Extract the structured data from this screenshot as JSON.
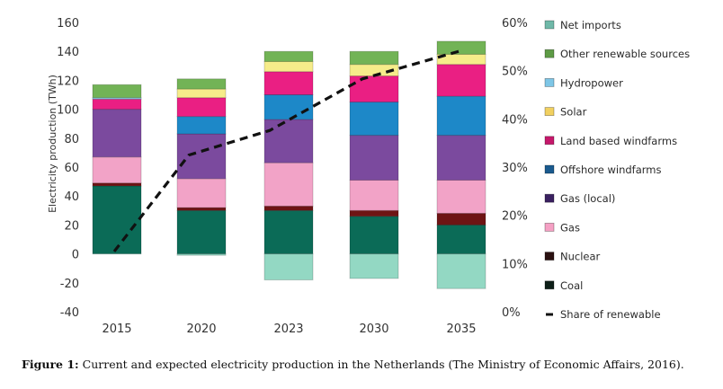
{
  "caption": {
    "label": "Figure 1:",
    "text": " Current and expected electricity production in the Netherlands (The Ministry of Economic Affairs, 2016)."
  },
  "chart_data": {
    "type": "bar",
    "stacked": true,
    "title": "",
    "xlabel": "",
    "ylabel": "Electricity production (TWh)",
    "y2label": "",
    "categories": [
      "2015",
      "2020",
      "2023",
      "2030",
      "2035"
    ],
    "ylim": [
      -40,
      160
    ],
    "yticks": [
      "160",
      "140",
      "120",
      "100",
      "80",
      "60",
      "40",
      "20",
      "0",
      "-20",
      "-40"
    ],
    "ytick_values": [
      160,
      140,
      120,
      100,
      80,
      60,
      40,
      20,
      0,
      -20,
      -40
    ],
    "y2lim": [
      0,
      60
    ],
    "y2ticks": [
      "60%",
      "50%",
      "40%",
      "30%",
      "20%",
      "10%",
      "0%"
    ],
    "y2tick_values": [
      60,
      50,
      40,
      30,
      20,
      10,
      0
    ],
    "grid": false,
    "legend_position": "right",
    "series": [
      {
        "name": "Coal",
        "color": "#0b6b57",
        "values": [
          47,
          30,
          30,
          26,
          20
        ]
      },
      {
        "name": "Nuclear",
        "color": "#6e1414",
        "values": [
          2,
          2,
          3,
          4,
          8
        ]
      },
      {
        "name": "Gas",
        "color": "#f2a3c7",
        "values": [
          18,
          20,
          30,
          21,
          23
        ]
      },
      {
        "name": "Gas (local)",
        "color": "#7b4a9e",
        "values": [
          33,
          31,
          30,
          31,
          31
        ]
      },
      {
        "name": "Offshore windfarms",
        "color": "#1d88c8",
        "values": [
          0,
          12,
          17,
          23,
          27
        ]
      },
      {
        "name": "Land based windfarms",
        "color": "#ea1f83",
        "values": [
          7,
          13,
          16,
          18,
          22
        ]
      },
      {
        "name": "Solar",
        "color": "#f6ec8a",
        "values": [
          0,
          6,
          7,
          8,
          7
        ]
      },
      {
        "name": "Hydropower",
        "color": "#8fd3ef",
        "values": [
          1,
          0,
          0,
          0,
          0
        ]
      },
      {
        "name": "Other renewable sources",
        "color": "#72b356",
        "values": [
          9,
          7,
          7,
          9,
          9
        ]
      },
      {
        "name": "Net imports",
        "color": "#93d8c3",
        "values": [
          0,
          -1,
          -18,
          -17,
          -24
        ]
      }
    ],
    "line_series": {
      "name": "Share of renewable",
      "axis": "right",
      "unit": "%",
      "color": "#111111",
      "style": "dashed",
      "values": [
        12.5,
        32.5,
        37.6,
        48.3,
        54
      ]
    },
    "legend": [
      {
        "name": "Net imports",
        "color": "#6fb8a8",
        "kind": "box"
      },
      {
        "name": "Other renewable sources",
        "color": "#5d9a45",
        "kind": "box"
      },
      {
        "name": "Hydropower",
        "color": "#7ec6e6",
        "kind": "box"
      },
      {
        "name": "Solar",
        "color": "#f1d060",
        "kind": "box"
      },
      {
        "name": "Land based windfarms",
        "color": "#c5186b",
        "kind": "box"
      },
      {
        "name": "Offshore windfarms",
        "color": "#1a5a8e",
        "kind": "box"
      },
      {
        "name": "Gas (local)",
        "color": "#3a2060",
        "kind": "box"
      },
      {
        "name": "Gas",
        "color": "#f5a0c4",
        "kind": "box"
      },
      {
        "name": "Nuclear",
        "color": "#2a1010",
        "kind": "box"
      },
      {
        "name": "Coal",
        "color": "#0e1f18",
        "kind": "box"
      },
      {
        "name": "Share of renewable",
        "color": "#111111",
        "kind": "dash"
      }
    ]
  }
}
